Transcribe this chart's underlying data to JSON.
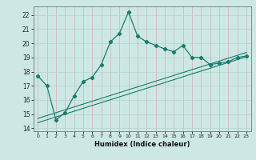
{
  "xlabel": "Humidex (Indice chaleur)",
  "background_color": "#cde8e4",
  "grid_color": "#aed4cf",
  "line_color": "#1a7a6e",
  "xlim": [
    -0.5,
    23.5
  ],
  "ylim": [
    13.8,
    22.6
  ],
  "xticks": [
    0,
    1,
    2,
    3,
    4,
    5,
    6,
    7,
    8,
    9,
    10,
    11,
    12,
    13,
    14,
    15,
    16,
    17,
    18,
    19,
    20,
    21,
    22,
    23
  ],
  "yticks": [
    14,
    15,
    16,
    17,
    18,
    19,
    20,
    21,
    22
  ],
  "curve1_x": [
    0,
    1,
    2,
    3,
    4,
    5,
    6,
    7,
    8,
    9,
    10,
    11,
    12,
    13,
    14,
    15,
    16,
    17,
    18,
    19,
    20,
    21,
    22,
    23
  ],
  "curve1_y": [
    17.7,
    17.0,
    14.6,
    15.1,
    16.3,
    17.3,
    17.6,
    18.5,
    20.1,
    20.7,
    22.2,
    20.5,
    20.1,
    19.85,
    19.6,
    19.4,
    19.85,
    19.0,
    19.0,
    18.5,
    18.6,
    18.7,
    19.0,
    19.1
  ],
  "line1_x": [
    0,
    23
  ],
  "line1_y": [
    14.4,
    19.05
  ],
  "line2_x": [
    0,
    23
  ],
  "line2_y": [
    14.7,
    19.35
  ]
}
